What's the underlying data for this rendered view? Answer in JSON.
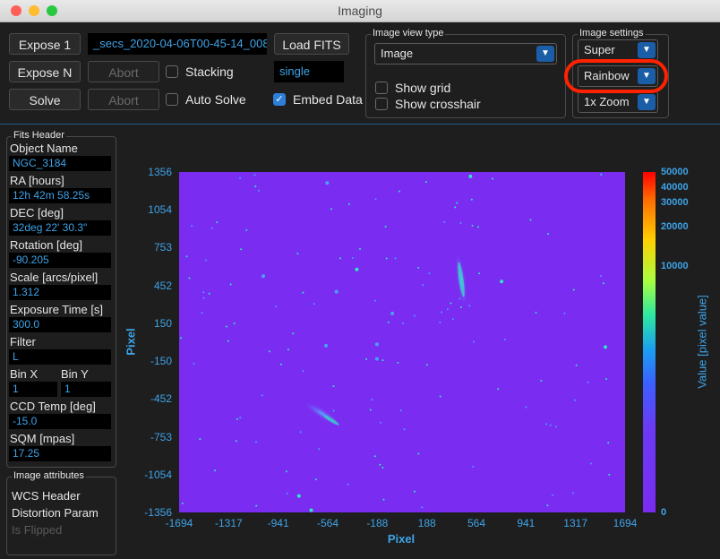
{
  "window": {
    "title": "Imaging",
    "traffic_colors": {
      "close": "#ff5f57",
      "minimize": "#febc2e",
      "zoom": "#28c840"
    }
  },
  "controls": {
    "expose1": "Expose 1",
    "exposeN": "Expose N",
    "solve": "Solve",
    "abort1": "Abort",
    "abort2": "Abort",
    "filename": "_secs_2020-04-06T00-45-14_008",
    "load_fits": "Load FITS",
    "mode": "single",
    "stacking": "Stacking",
    "auto_solve": "Auto Solve",
    "embed_data": "Embed Data",
    "stacking_checked": false,
    "auto_solve_checked": false,
    "embed_data_checked": true
  },
  "view_type": {
    "title": "Image view type",
    "selected": "Image",
    "show_grid": "Show grid",
    "show_crosshair": "Show crosshair",
    "show_grid_checked": false,
    "show_crosshair_checked": false
  },
  "image_settings": {
    "title": "Image settings",
    "stretch": "Super",
    "colormap": "Rainbow",
    "zoom": "1x Zoom",
    "highlight_color": "#ff2200"
  },
  "fits_header": {
    "title": "Fits Header",
    "fields": [
      {
        "label": "Object Name",
        "value": "NGC_3184"
      },
      {
        "label": "RA [hours]",
        "value": "12h 42m 58.25s"
      },
      {
        "label": "DEC [deg]",
        "value": "32deg 22' 30.3\""
      },
      {
        "label": "Rotation [deg]",
        "value": "-90.205"
      },
      {
        "label": "Scale [arcs/pixel]",
        "value": "1.312"
      },
      {
        "label": "Exposure Time [s]",
        "value": "300.0"
      },
      {
        "label": "Filter",
        "value": "L"
      }
    ],
    "bin_x_label": "Bin X",
    "bin_y_label": "Bin Y",
    "bin_x": "1",
    "bin_y": "1",
    "ccd_label": "CCD Temp [deg]",
    "ccd_value": "-15.0",
    "sqm_label": "SQM [mpas]",
    "sqm_value": "17.25"
  },
  "image_attributes": {
    "title": "Image attributes",
    "items": [
      "WCS Header",
      "Distortion Param",
      "Is Flipped"
    ]
  },
  "plot": {
    "xlabel": "Pixel",
    "ylabel": "Pixel",
    "cbar_label": "Value [pixel value]",
    "xticks": [
      "-1694",
      "-1317",
      "-941",
      "-564",
      "-188",
      "188",
      "564",
      "941",
      "1317",
      "1694"
    ],
    "yticks": [
      "1356",
      "1054",
      "753",
      "452",
      "150",
      "-150",
      "-452",
      "-753",
      "-1054",
      "-1356"
    ],
    "cbar_ticks": [
      "50000",
      "40000",
      "30000",
      "20000",
      "10000",
      "0"
    ],
    "background_color": "#7a2cf0",
    "tick_color": "#3ea3e8"
  }
}
